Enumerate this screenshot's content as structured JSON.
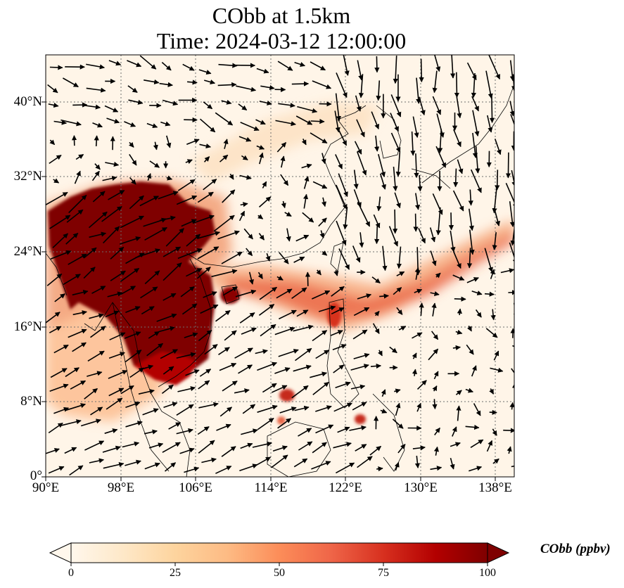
{
  "title": {
    "line1": "CObb at 1.5km",
    "line2": "Time: 2024-03-12 12:00:00"
  },
  "map": {
    "lon_range_deg": [
      90,
      140
    ],
    "lat_range_deg": [
      0,
      45
    ],
    "lon_ticks": [
      "90°E",
      "98°E",
      "106°E",
      "114°E",
      "122°E",
      "130°E",
      "138°E"
    ],
    "lat_ticks": [
      "0°",
      "8°N",
      "16°N",
      "24°N",
      "32°N",
      "40°N"
    ],
    "gridlines": true,
    "coastlines": true,
    "wind_vectors": true,
    "field": "CObb",
    "colormap": "OrRd"
  },
  "colorbar": {
    "label": "CObb (ppbv)",
    "ticks": [
      "0",
      "25",
      "50",
      "75",
      "100"
    ],
    "range": [
      0,
      100
    ],
    "extend": "both",
    "colors": [
      "#fff7ec",
      "#fee8c8",
      "#fdd49e",
      "#fdbb84",
      "#fc8d59",
      "#ef6548",
      "#d7301f",
      "#b30000",
      "#7f0000"
    ]
  }
}
